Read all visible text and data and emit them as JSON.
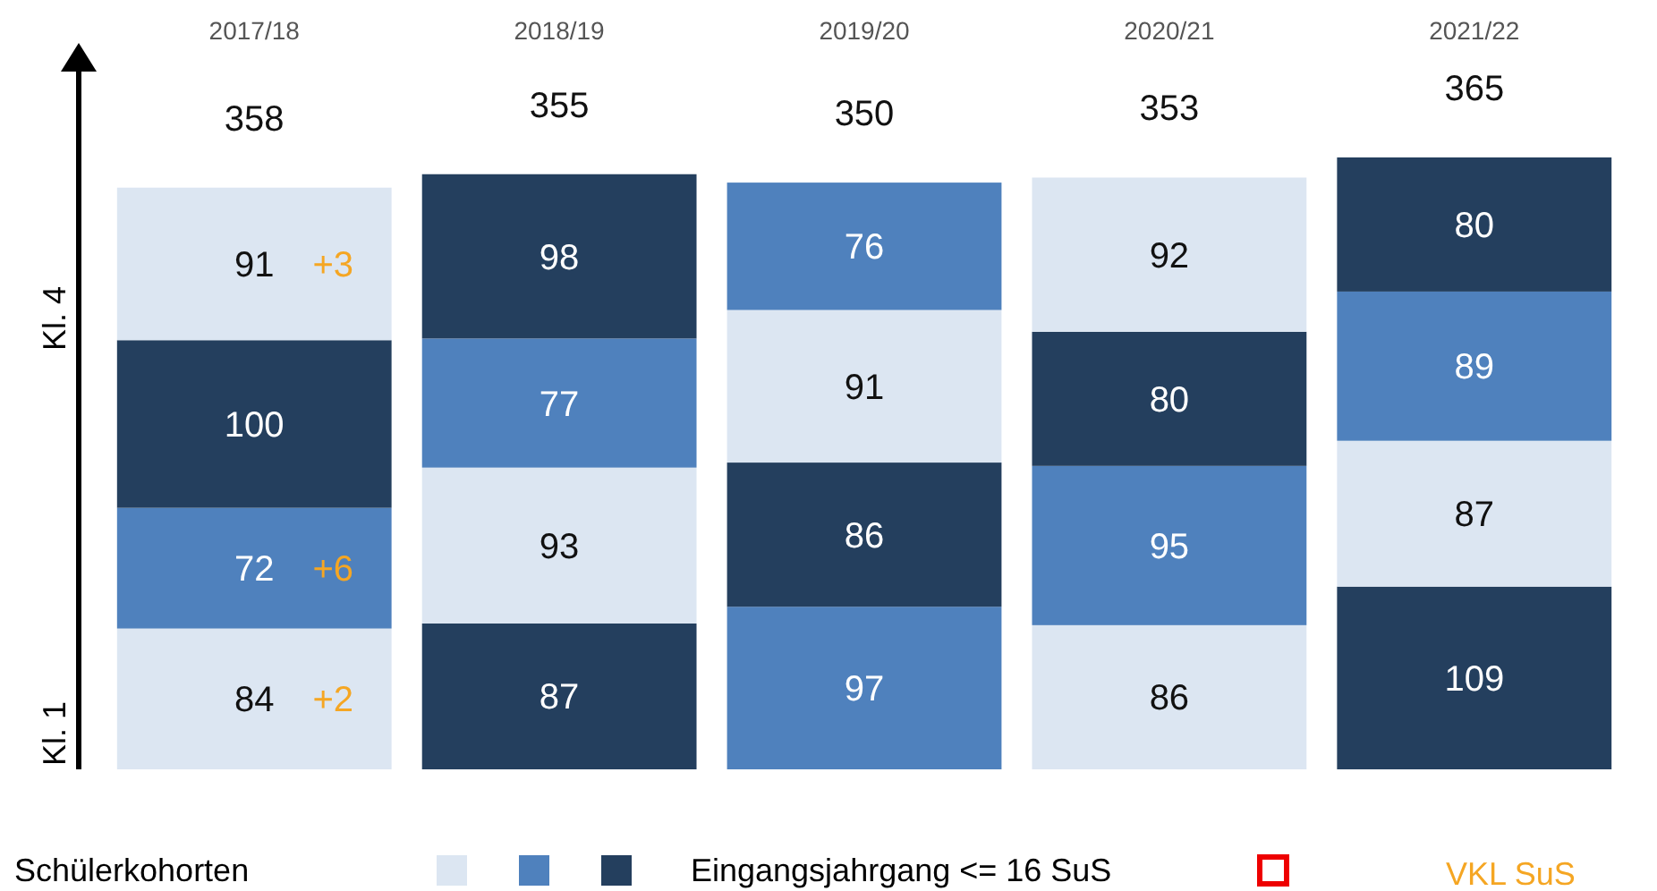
{
  "chart_data": {
    "type": "bar",
    "stacked": true,
    "data_labels": true,
    "legend_title": "Schülerkohorten",
    "grid": false,
    "categories": [
      "2017/18",
      "2018/19",
      "2019/20",
      "2020/21",
      "2021/22"
    ],
    "series": [
      {
        "values": [
          84,
          87,
          97,
          86,
          109
        ],
        "colors": [
          "#dce6f2",
          "#243f5e",
          "#4f81bd",
          "#dce6f2",
          "#243f5e"
        ]
      },
      {
        "values": [
          72,
          93,
          86,
          95,
          87
        ],
        "colors": [
          "#4f81bd",
          "#dce6f2",
          "#243f5e",
          "#4f81bd",
          "#dce6f2"
        ]
      },
      {
        "values": [
          100,
          77,
          91,
          80,
          89
        ],
        "colors": [
          "#243f5e",
          "#4f81bd",
          "#dce6f2",
          "#243f5e",
          "#4f81bd"
        ]
      },
      {
        "values": [
          91,
          98,
          76,
          92,
          80
        ],
        "colors": [
          "#dce6f2",
          "#243f5e",
          "#4f81bd",
          "#dce6f2",
          "#243f5e"
        ]
      }
    ],
    "annotations": [
      "358",
      "355",
      "350",
      "353",
      "365",
      "+2",
      "+6",
      null,
      "+3",
      "Kl. 1",
      "Kl. 4",
      "Eingangsjahrgang <= 16 SuS",
      "VKL SuS"
    ]
  }
}
